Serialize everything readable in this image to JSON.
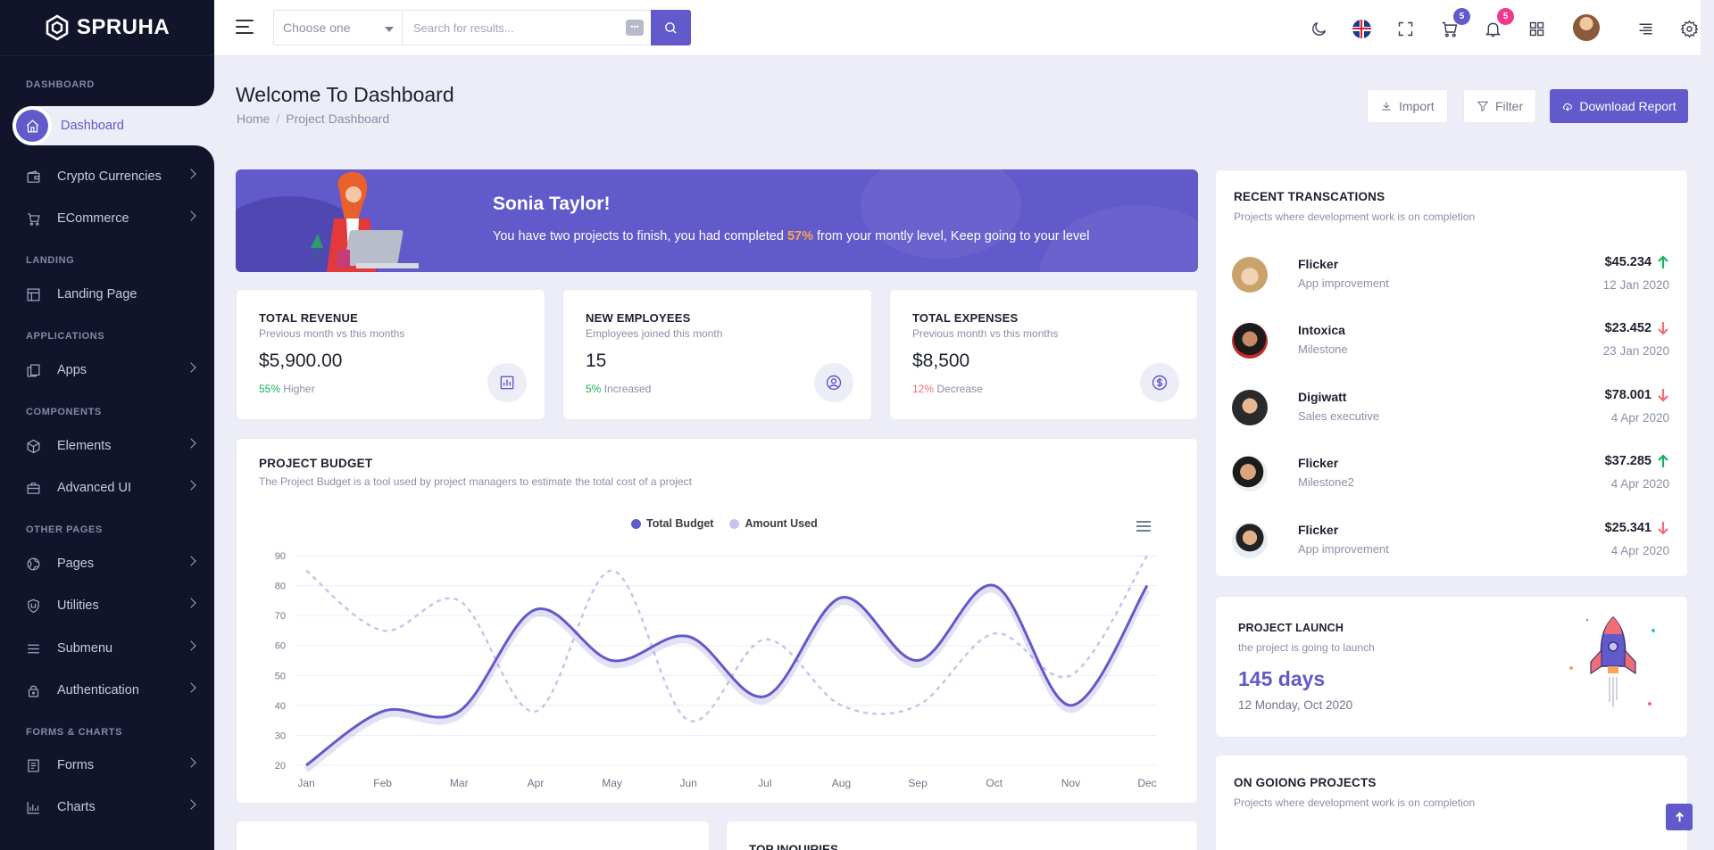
{
  "brand": {
    "name": "SPRUHA"
  },
  "sidebar": {
    "sections": {
      "dashboard": "DASHBOARD",
      "landing": "LANDING",
      "applications": "APPLICATIONS",
      "components": "COMPONENTS",
      "other_pages": "OTHER PAGES",
      "forms_charts": "FORMS & CHARTS"
    },
    "active": {
      "label": "Dashboard",
      "icon": "home-icon"
    },
    "items": [
      {
        "label": "Crypto Currencies",
        "icon": "wallet-icon"
      },
      {
        "label": "ECommerce",
        "icon": "cart-icon"
      },
      {
        "label": "Landing Page",
        "icon": "layout-icon"
      },
      {
        "label": "Apps",
        "icon": "copy-icon"
      },
      {
        "label": "Elements",
        "icon": "box-icon"
      },
      {
        "label": "Advanced UI",
        "icon": "briefcase-icon"
      },
      {
        "label": "Pages",
        "icon": "globe-icon"
      },
      {
        "label": "Utilities",
        "icon": "shield-icon"
      },
      {
        "label": "Submenu",
        "icon": "menu-icon"
      },
      {
        "label": "Authentication",
        "icon": "lock-icon"
      },
      {
        "label": "Forms",
        "icon": "file-icon"
      },
      {
        "label": "Charts",
        "icon": "bar-chart-icon"
      }
    ]
  },
  "header": {
    "select_placeholder": "Choose one",
    "search_placeholder": "Search for results...",
    "search_kbd": "•••",
    "cart_badge": "5",
    "notif_badge": "5"
  },
  "page": {
    "title": "Welcome To Dashboard",
    "breadcrumb_home": "Home",
    "breadcrumb_separator": "/",
    "breadcrumb_current": "Project Dashboard",
    "import_label": "Import",
    "filter_label": "Filter",
    "download_label": "Download Report"
  },
  "welcome": {
    "name": "Sonia Taylor!",
    "text_before": "You have two projects to finish, you had completed ",
    "highlight": "57%",
    "text_after": " from your montly level, Keep going to your level"
  },
  "stats": [
    {
      "title": "TOTAL REVENUE",
      "sub": "Previous month vs this months",
      "value": "$5,900.00",
      "pct": "55%",
      "trend": "Higher",
      "icon": "bar-chart-icon"
    },
    {
      "title": "NEW EMPLOYEES",
      "sub": "Employees joined this month",
      "value": "15",
      "pct": "5%",
      "trend": "Increased",
      "icon": "user-icon"
    },
    {
      "title": "TOTAL EXPENSES",
      "sub": "Previous month vs this months",
      "value": "$8,500",
      "pct": "12%",
      "trend": "Decrease",
      "icon": "dollar-icon"
    }
  ],
  "budget": {
    "title": "PROJECT BUDGET",
    "subtitle": "The Project Budget is a tool used by project managers to estimate the total cost of a project"
  },
  "chart_data": {
    "type": "line",
    "categories": [
      "Jan",
      "Feb",
      "Mar",
      "Apr",
      "May",
      "Jun",
      "Jul",
      "Aug",
      "Sep",
      "Oct",
      "Nov",
      "Dec"
    ],
    "series": [
      {
        "name": "Total Budget",
        "values": [
          20,
          38,
          38,
          72,
          55,
          63,
          43,
          76,
          55,
          80,
          40,
          80
        ],
        "color": "#6259ca",
        "style": "solid"
      },
      {
        "name": "Amount Used",
        "values": [
          85,
          65,
          75,
          38,
          85,
          35,
          62,
          40,
          40,
          64,
          50,
          90
        ],
        "color": "#c7c3ee",
        "style": "dashed"
      }
    ],
    "yticks": [
      20,
      30,
      40,
      50,
      60,
      70,
      80,
      90
    ],
    "ylim": [
      20,
      90
    ],
    "legend_position": "top-center",
    "grid": true
  },
  "transactions": {
    "title": "RECENT TRANSCATIONS",
    "subtitle": "Projects where development work is on completion",
    "items": [
      {
        "name": "Flicker",
        "sub": "App improvement",
        "amount": "$45.234",
        "date": "12 Jan 2020",
        "dir": "up"
      },
      {
        "name": "Intoxica",
        "sub": "Milestone",
        "amount": "$23.452",
        "date": "23 Jan 2020",
        "dir": "down"
      },
      {
        "name": "Digiwatt",
        "sub": "Sales executive",
        "amount": "$78.001",
        "date": "4 Apr 2020",
        "dir": "down"
      },
      {
        "name": "Flicker",
        "sub": "Milestone2",
        "amount": "$37.285",
        "date": "4 Apr 2020",
        "dir": "up"
      },
      {
        "name": "Flicker",
        "sub": "App improvement",
        "amount": "$25.341",
        "date": "4 Apr 2020",
        "dir": "down"
      }
    ]
  },
  "launch": {
    "title": "PROJECT LAUNCH",
    "sub": "the project is going to launch",
    "days": "145 days",
    "date": "12 Monday, Oct 2020"
  },
  "ongoing": {
    "title": "ON GOIONG PROJECTS",
    "subtitle": "Projects where development work is on completion"
  },
  "inquiries": {
    "title": "TOP INQUIRIES"
  },
  "colors": {
    "primary": "#6259ca",
    "sidebar": "#11142a",
    "success": "#19b159",
    "danger": "#f16d75",
    "accent": "#f7a556"
  }
}
